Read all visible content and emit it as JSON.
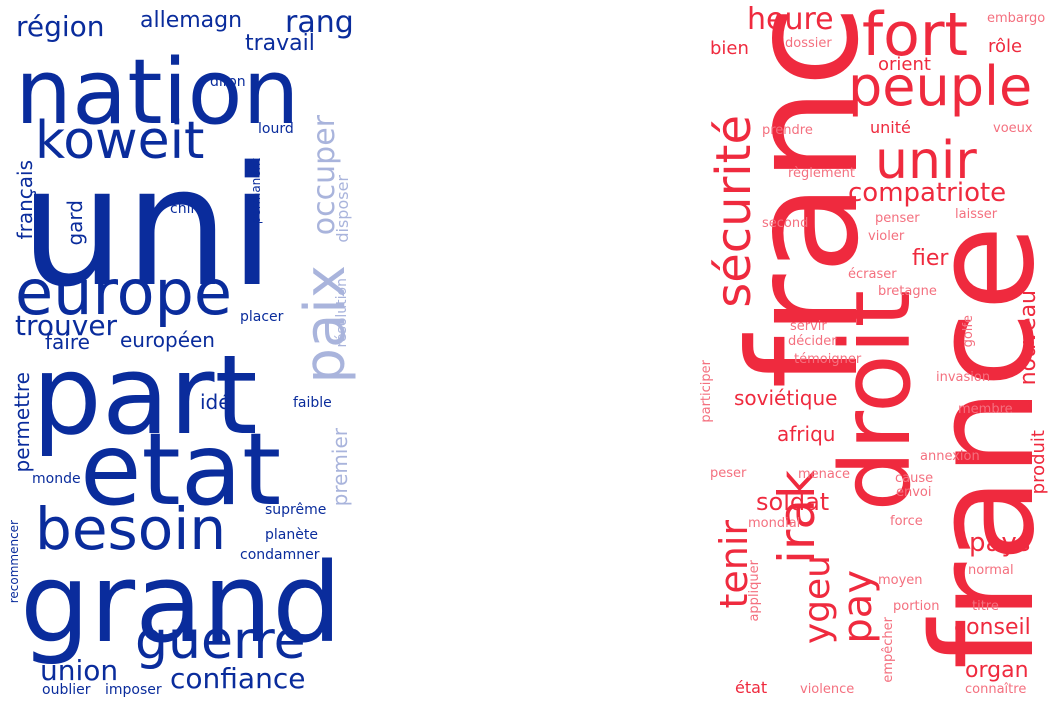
{
  "colors": {
    "blue_dark": "#0a2c9c",
    "blue_light": "#a9b4dc",
    "red": "#ef2a3e",
    "red_light": "#f4707f"
  },
  "left_cloud": {
    "words": [
      "uni",
      "nation",
      "part",
      "etat",
      "grand",
      "europe",
      "besoin",
      "koweit",
      "guerre",
      "paix",
      "région",
      "rang",
      "allemagn",
      "travail",
      "occuper",
      "trouver",
      "confiance",
      "union",
      "faire",
      "européen",
      "français",
      "gard",
      "permettre",
      "premier",
      "idé",
      "disposer",
      "résolution",
      "diron",
      "lourd",
      "chin",
      "permanent",
      "placer",
      "faible",
      "monde",
      "suprême",
      "planète",
      "condamner",
      "recommencer",
      "oublier",
      "imposer"
    ]
  },
  "right_cloud": {
    "words": [
      "franc",
      "france",
      "droit",
      "fort",
      "peuple",
      "unir",
      "sécurité",
      "irak",
      "pay",
      "tenir",
      "ygeu",
      "heure",
      "compatriote",
      "soldat",
      "nouveau",
      "pays",
      "conseil",
      "organ",
      "fier",
      "soviétique",
      "afriqu",
      "produit",
      "bien",
      "orient",
      "unité",
      "dossier",
      "rôle",
      "embargo",
      "prendre",
      "voeux",
      "règlement",
      "second",
      "penser",
      "laisser",
      "violer",
      "écraser",
      "bretagne",
      "servir",
      "décider",
      "golfe",
      "témoigner",
      "invasion",
      "participer",
      "membre",
      "annexion",
      "menace",
      "cause",
      "peser",
      "envoi",
      "mondial",
      "force",
      "appliquer",
      "moyen",
      "normal",
      "portion",
      "titre",
      "empêcher",
      "état",
      "violence",
      "connaître"
    ]
  }
}
